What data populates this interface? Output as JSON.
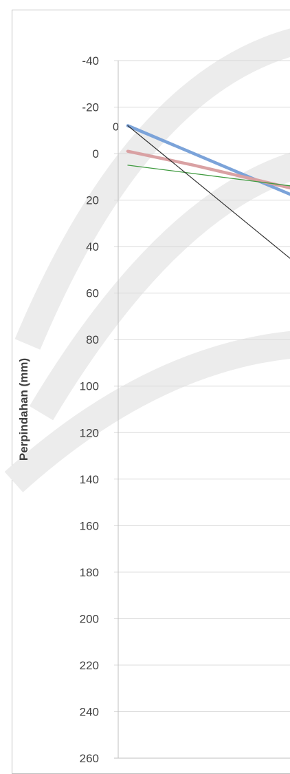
{
  "chart_data": {
    "type": "line",
    "title": "",
    "xlabel": "",
    "ylabel": "Perpindahan (mm)",
    "y_axis_reversed": true,
    "ylim": [
      -40,
      260
    ],
    "ytick_step": 20,
    "ytick_labels": [
      "-40",
      "-20",
      "0",
      "20",
      "40",
      "60",
      "80",
      "100",
      "120",
      "140",
      "160",
      "180",
      "200",
      "220",
      "240",
      "260"
    ],
    "xlim": [
      0,
      10
    ],
    "grid": true,
    "legend": "none",
    "annotations": [
      {
        "text": "0",
        "x": 0,
        "y": -12
      }
    ],
    "series": [
      {
        "color": "#7ba3d9",
        "width": 4.5,
        "x": [
          0,
          10
        ],
        "y": [
          -12,
          18
        ]
      },
      {
        "color": "#d9a1a3",
        "width": 4.5,
        "x": [
          0,
          4,
          10
        ],
        "y": [
          -1,
          5,
          15
        ]
      },
      {
        "color": "#3e9a3e",
        "width": 1.3,
        "x": [
          0,
          10
        ],
        "y": [
          5,
          14
        ]
      },
      {
        "color": "#333333",
        "width": 1.2,
        "x": [
          0,
          10
        ],
        "y": [
          -12,
          46
        ]
      }
    ]
  },
  "colors": {
    "grid": "#d9d9d9",
    "axis": "#bfbfbf",
    "text": "#404040"
  }
}
